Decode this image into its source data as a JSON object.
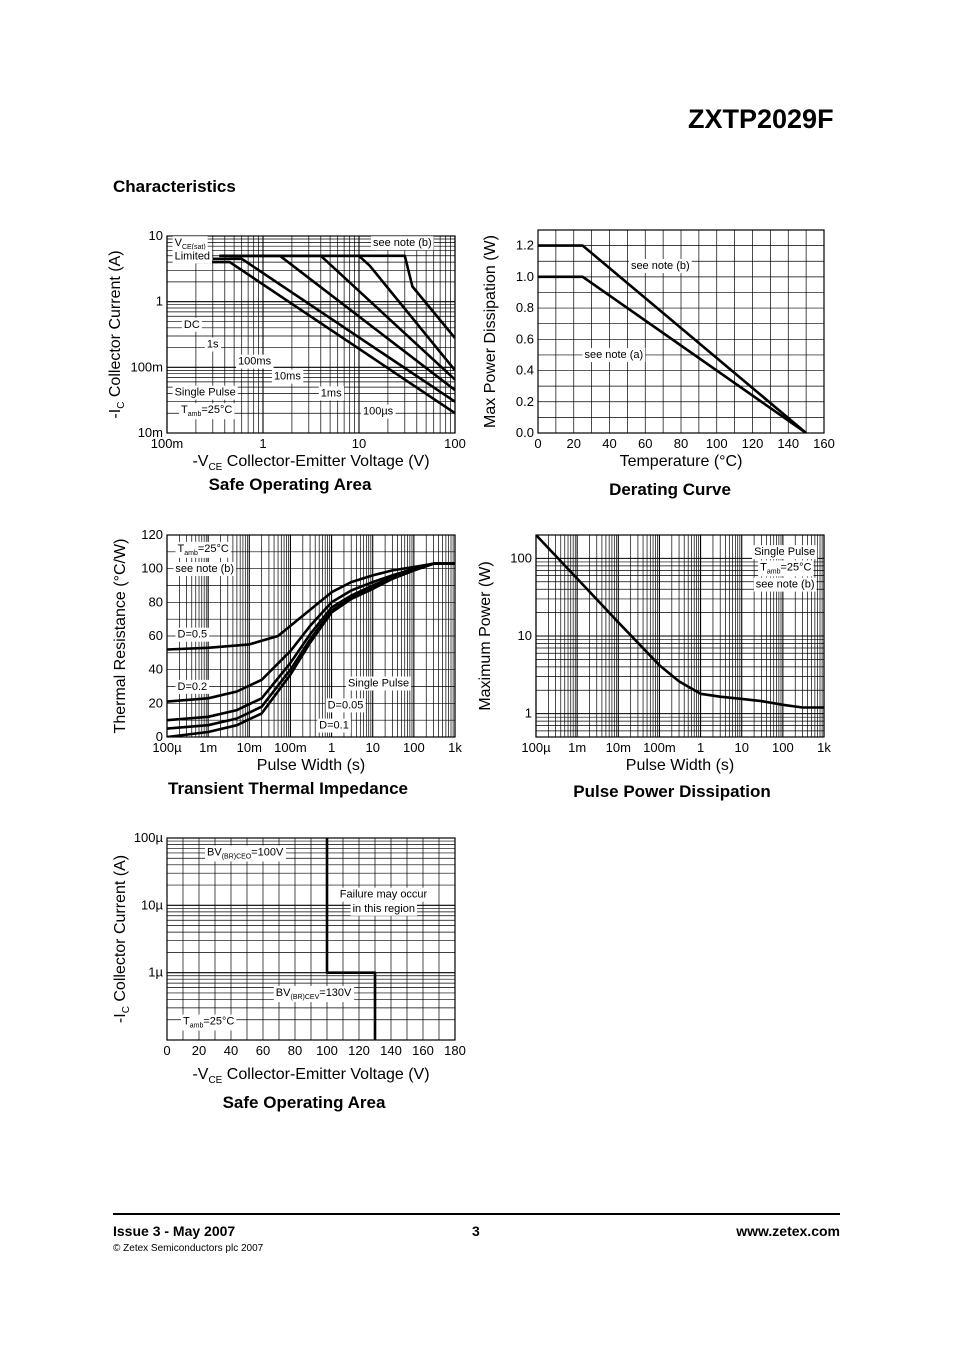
{
  "header": {
    "part_number": "ZXTP2029F",
    "section_title": "Characteristics"
  },
  "footer": {
    "issue": "Issue 3 - May 2007",
    "copyright": "© Zetex Semiconductors plc 2007",
    "page": "3",
    "website": "www.zetex.com"
  },
  "chart_data": [
    {
      "id": "soa1",
      "type": "line",
      "title": "Safe Operating Area",
      "xlabel_prefix": "-V",
      "xlabel_sub": "CE",
      "xlabel_text": "Collector-Emitter Voltage (V)",
      "ylabel_prefix": "-I",
      "ylabel_sub": "C",
      "ylabel_text": "Collector Current (A)",
      "xscale": "log",
      "yscale": "log",
      "xlim": [
        0.1,
        100
      ],
      "ylim": [
        0.01,
        10
      ],
      "grid": true,
      "xticks": [
        {
          "v": 0.1,
          "label": "100m"
        },
        {
          "v": 1,
          "label": "1"
        },
        {
          "v": 10,
          "label": "10"
        },
        {
          "v": 100,
          "label": "100"
        }
      ],
      "yticks": [
        {
          "v": 0.01,
          "label": "10m"
        },
        {
          "v": 0.1,
          "label": "100m"
        },
        {
          "v": 1,
          "label": "1"
        },
        {
          "v": 10,
          "label": "10"
        }
      ],
      "series": [
        {
          "x": [
            0.2,
            0.45,
            100
          ],
          "y": [
            4,
            4,
            0.02
          ]
        },
        {
          "x": [
            0.3,
            0.6,
            100
          ],
          "y": [
            4.5,
            4.5,
            0.03
          ]
        },
        {
          "x": [
            0.35,
            1.5,
            100
          ],
          "y": [
            5,
            5,
            0.045
          ]
        },
        {
          "x": [
            0.4,
            4,
            100
          ],
          "y": [
            5,
            5,
            0.065
          ]
        },
        {
          "x": [
            0.45,
            10,
            13,
            100
          ],
          "y": [
            5,
            5,
            3.5,
            0.09
          ]
        },
        {
          "x": [
            0.5,
            30,
            36,
            100
          ],
          "y": [
            5,
            5,
            1.7,
            0.28
          ]
        }
      ],
      "annotations": [
        {
          "text": "V",
          "sub": "CE(sat)",
          "x": 0.12,
          "y": 7
        },
        {
          "text": "Limited",
          "x": 0.12,
          "y": 4.4
        },
        {
          "text": "see note (b)",
          "x": 14,
          "y": 7
        },
        {
          "text": "DC",
          "x": 0.15,
          "y": 0.4
        },
        {
          "text": "1s",
          "x": 0.26,
          "y": 0.2
        },
        {
          "text": "100ms",
          "x": 0.55,
          "y": 0.11
        },
        {
          "text": "10ms",
          "x": 1.3,
          "y": 0.065
        },
        {
          "text": "1ms",
          "x": 4,
          "y": 0.036
        },
        {
          "text": "100µs",
          "x": 11,
          "y": 0.019
        },
        {
          "text": "Single Pulse",
          "x": 0.12,
          "y": 0.037
        },
        {
          "text": "T",
          "sub": "amb",
          "suffix": "=25°C",
          "x": 0.14,
          "y": 0.02
        }
      ]
    },
    {
      "id": "derating",
      "type": "line",
      "title": "Derating Curve",
      "xlabel": "Temperature (°C)",
      "ylabel": "Max Power Dissipation (W)",
      "xscale": "linear",
      "yscale": "linear",
      "xlim": [
        0,
        160
      ],
      "ylim": [
        0,
        1.3
      ],
      "grid": true,
      "xticks": [
        {
          "v": 0,
          "label": "0"
        },
        {
          "v": 20,
          "label": "20"
        },
        {
          "v": 40,
          "label": "40"
        },
        {
          "v": 60,
          "label": "60"
        },
        {
          "v": 80,
          "label": "80"
        },
        {
          "v": 100,
          "label": "100"
        },
        {
          "v": 120,
          "label": "120"
        },
        {
          "v": 140,
          "label": "140"
        },
        {
          "v": 160,
          "label": "160"
        }
      ],
      "yticks": [
        {
          "v": 0,
          "label": "0.0"
        },
        {
          "v": 0.2,
          "label": "0.2"
        },
        {
          "v": 0.4,
          "label": "0.4"
        },
        {
          "v": 0.6,
          "label": "0.6"
        },
        {
          "v": 0.8,
          "label": "0.8"
        },
        {
          "v": 1.0,
          "label": "1.0"
        },
        {
          "v": 1.2,
          "label": "1.2"
        }
      ],
      "series": [
        {
          "x": [
            0,
            25,
            150
          ],
          "y": [
            1.2,
            1.2,
            0
          ]
        },
        {
          "x": [
            0,
            25,
            150
          ],
          "y": [
            1.0,
            1.0,
            0
          ]
        }
      ],
      "annotations": [
        {
          "text": "see note (b)",
          "x": 52,
          "y": 1.05
        },
        {
          "text": "see note (a)",
          "x": 26,
          "y": 0.48
        }
      ]
    },
    {
      "id": "thermal",
      "type": "line",
      "title": "Transient Thermal Impedance",
      "xlabel": "Pulse Width (s)",
      "ylabel": "Thermal Resistance (°C/W)",
      "xscale": "log",
      "yscale": "linear",
      "xlim": [
        0.0001,
        1000
      ],
      "ylim": [
        0,
        120
      ],
      "grid": true,
      "xticks": [
        {
          "v": 0.0001,
          "label": "100µ"
        },
        {
          "v": 0.001,
          "label": "1m"
        },
        {
          "v": 0.01,
          "label": "10m"
        },
        {
          "v": 0.1,
          "label": "100m"
        },
        {
          "v": 1,
          "label": "1"
        },
        {
          "v": 10,
          "label": "10"
        },
        {
          "v": 100,
          "label": "100"
        },
        {
          "v": 1000,
          "label": "1k"
        }
      ],
      "yticks": [
        {
          "v": 0,
          "label": "0"
        },
        {
          "v": 20,
          "label": "20"
        },
        {
          "v": 40,
          "label": "40"
        },
        {
          "v": 60,
          "label": "60"
        },
        {
          "v": 80,
          "label": "80"
        },
        {
          "v": 100,
          "label": "100"
        },
        {
          "v": 120,
          "label": "120"
        }
      ],
      "series": [
        {
          "x": [
            0.0001,
            0.001,
            0.01,
            0.05,
            0.2,
            1,
            3,
            10,
            30,
            100,
            300,
            1000
          ],
          "y": [
            52,
            53,
            55,
            60,
            72,
            86,
            92,
            96,
            99,
            101,
            103,
            103
          ]
        },
        {
          "x": [
            0.0001,
            0.001,
            0.005,
            0.02,
            0.1,
            0.3,
            1,
            3,
            10,
            30,
            100,
            300,
            1000
          ],
          "y": [
            21,
            23,
            27,
            34,
            51,
            66,
            80,
            87,
            92,
            96,
            100,
            103,
            103
          ]
        },
        {
          "x": [
            0.0001,
            0.001,
            0.005,
            0.02,
            0.1,
            0.3,
            1,
            3,
            10,
            30,
            100,
            300,
            1000
          ],
          "y": [
            10,
            12,
            16,
            23,
            44,
            61,
            77,
            84,
            90,
            95,
            100,
            103,
            103
          ]
        },
        {
          "x": [
            0.0001,
            0.001,
            0.005,
            0.02,
            0.1,
            0.3,
            1,
            3,
            10,
            30,
            100,
            300,
            1000
          ],
          "y": [
            5,
            7,
            11,
            18,
            40,
            58,
            75,
            83,
            89,
            94,
            99,
            103,
            103
          ]
        },
        {
          "x": [
            0.0001,
            0.001,
            0.005,
            0.02,
            0.1,
            0.3,
            1,
            3,
            10,
            30,
            100,
            300,
            1000
          ],
          "y": [
            0,
            3,
            7,
            14,
            37,
            56,
            74,
            82,
            88,
            94,
            99,
            103,
            103
          ]
        }
      ],
      "annotations": [
        {
          "text": "T",
          "sub": "amb",
          "suffix": "=25°C",
          "x": 0.00018,
          "y": 110
        },
        {
          "text": "see note (b)",
          "x": 0.00016,
          "y": 98
        },
        {
          "text": "D=0.5",
          "x": 0.00018,
          "y": 59
        },
        {
          "text": "D=0.2",
          "x": 0.00018,
          "y": 28
        },
        {
          "text": "Single Pulse",
          "x": 2.5,
          "y": 30
        },
        {
          "text": "D=0.05",
          "x": 0.8,
          "y": 17
        },
        {
          "text": "D=0.1",
          "x": 0.5,
          "y": 5
        }
      ]
    },
    {
      "id": "pulse",
      "type": "line",
      "title": "Pulse Power Dissipation",
      "xlabel": "Pulse Width (s)",
      "ylabel": "Maximum Power (W)",
      "xscale": "log",
      "yscale": "log",
      "xlim": [
        0.0001,
        1000
      ],
      "ylim": [
        0.5,
        200
      ],
      "grid": true,
      "xticks": [
        {
          "v": 0.0001,
          "label": "100µ"
        },
        {
          "v": 0.001,
          "label": "1m"
        },
        {
          "v": 0.01,
          "label": "10m"
        },
        {
          "v": 0.1,
          "label": "100m"
        },
        {
          "v": 1,
          "label": "1"
        },
        {
          "v": 10,
          "label": "10"
        },
        {
          "v": 100,
          "label": "100"
        },
        {
          "v": 1000,
          "label": "1k"
        }
      ],
      "yticks": [
        {
          "v": 1,
          "label": "1"
        },
        {
          "v": 10,
          "label": "10"
        },
        {
          "v": 100,
          "label": "100"
        }
      ],
      "series": [
        {
          "x": [
            0.0001,
            0.001,
            0.01,
            0.1,
            0.3,
            1,
            3,
            10,
            30,
            100,
            300,
            1000
          ],
          "y": [
            200,
            55,
            15,
            4.2,
            2.6,
            1.8,
            1.65,
            1.55,
            1.45,
            1.3,
            1.2,
            1.2
          ]
        }
      ],
      "annotations": [
        {
          "text": "Single Pulse",
          "x": 20,
          "y": 110
        },
        {
          "text": "T",
          "sub": "amb",
          "suffix": "=25°C",
          "x": 28,
          "y": 70
        },
        {
          "text": "see note (b)",
          "x": 22,
          "y": 42
        }
      ]
    },
    {
      "id": "soa2",
      "type": "line",
      "title": "Safe Operating Area",
      "xlabel_prefix": "-V",
      "xlabel_sub": "CE",
      "xlabel_text": "Collector-Emitter Voltage (V)",
      "ylabel_prefix": "-I",
      "ylabel_sub": "C",
      "ylabel_text": "Collector Current (A)",
      "xscale": "linear",
      "yscale": "log",
      "xlim": [
        0,
        180
      ],
      "ylim": [
        1e-07,
        0.0001
      ],
      "grid": true,
      "xticks": [
        {
          "v": 0,
          "label": "0"
        },
        {
          "v": 20,
          "label": "20"
        },
        {
          "v": 40,
          "label": "40"
        },
        {
          "v": 60,
          "label": "60"
        },
        {
          "v": 80,
          "label": "80"
        },
        {
          "v": 100,
          "label": "100"
        },
        {
          "v": 120,
          "label": "120"
        },
        {
          "v": 140,
          "label": "140"
        },
        {
          "v": 160,
          "label": "160"
        },
        {
          "v": 180,
          "label": "180"
        }
      ],
      "yticks": [
        {
          "v": 1e-06,
          "label": "1µ"
        },
        {
          "v": 1e-05,
          "label": "10µ"
        },
        {
          "v": 0.0001,
          "label": "100µ"
        }
      ],
      "series": [
        {
          "x": [
            100,
            100,
            130,
            130
          ],
          "y": [
            0.0001,
            1e-06,
            1e-06,
            1e-07
          ]
        }
      ],
      "annotations": [
        {
          "text": "BV",
          "sub": "(BR)CEO",
          "suffix": "=100V",
          "x": 25,
          "y": 5.5e-05
        },
        {
          "text": "Failure may occur",
          "x": 108,
          "y": 1.3e-05
        },
        {
          "text": "in this region",
          "x": 116,
          "y": 8e-06
        },
        {
          "text": "BV",
          "sub": "(BR)CEV",
          "suffix": "=130V",
          "x": 68,
          "y": 4.5e-07
        },
        {
          "text": "T",
          "sub": "amb",
          "suffix": "=25°C",
          "x": 10,
          "y": 1.7e-07
        }
      ]
    }
  ]
}
